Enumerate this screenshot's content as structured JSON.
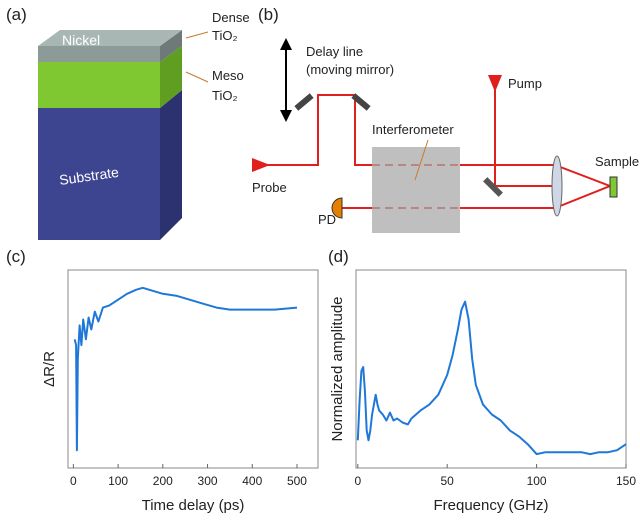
{
  "panels": {
    "a": {
      "tag": "(a)",
      "dense": "Dense",
      "dense_material": "TiO₂",
      "nickel": "Nickel",
      "meso": "Meso",
      "meso_material": "TiO₂",
      "substrate": "Substrate"
    },
    "b": {
      "tag": "(b)",
      "delay_line": "Delay line",
      "delay_note": "(moving mirror)",
      "pump": "Pump",
      "interferometer": "Interferometer",
      "probe": "Probe",
      "detector": "PD",
      "sample": "Sample"
    },
    "c": {
      "tag": "(c)"
    },
    "d": {
      "tag": "(d)"
    }
  },
  "chart_data": [
    {
      "type": "line",
      "x_label": "Time delay (ps)",
      "y_label": "ΔR/R",
      "xlim": [
        -12,
        547
      ],
      "ylim": [
        0,
        1
      ],
      "xticks": [
        0,
        100,
        200,
        300,
        400,
        500
      ],
      "color": "#1f78d8",
      "x": [
        3,
        6,
        8,
        10,
        14,
        18,
        22,
        28,
        34,
        40,
        48,
        56,
        66,
        80,
        100,
        120,
        140,
        155,
        170,
        200,
        230,
        260,
        290,
        320,
        350,
        400,
        450,
        500
      ],
      "values": [
        0.65,
        0.62,
        0.09,
        0.55,
        0.72,
        0.62,
        0.75,
        0.65,
        0.76,
        0.7,
        0.79,
        0.74,
        0.81,
        0.82,
        0.85,
        0.88,
        0.9,
        0.91,
        0.9,
        0.88,
        0.87,
        0.85,
        0.83,
        0.81,
        0.8,
        0.8,
        0.8,
        0.81
      ]
    },
    {
      "type": "line",
      "x_label": "Frequency (GHz)",
      "y_label": "Normalized amplitude",
      "xlim": [
        -1,
        150
      ],
      "ylim": [
        0,
        1
      ],
      "xticks": [
        0,
        50,
        100,
        150
      ],
      "color": "#1f78d8",
      "x": [
        0,
        1,
        2,
        3,
        4,
        5,
        6,
        7,
        8,
        10,
        11,
        12,
        14,
        16,
        18,
        20,
        22,
        25,
        28,
        30,
        35,
        40,
        45,
        50,
        53,
        56,
        58,
        60,
        62,
        64,
        66,
        70,
        75,
        80,
        85,
        90,
        95,
        100,
        105,
        110,
        115,
        120,
        125,
        130,
        135,
        140,
        145,
        150
      ],
      "values": [
        0.14,
        0.34,
        0.49,
        0.51,
        0.39,
        0.19,
        0.14,
        0.19,
        0.27,
        0.37,
        0.32,
        0.29,
        0.27,
        0.24,
        0.28,
        0.24,
        0.25,
        0.23,
        0.22,
        0.25,
        0.29,
        0.32,
        0.37,
        0.47,
        0.57,
        0.7,
        0.8,
        0.84,
        0.75,
        0.55,
        0.42,
        0.32,
        0.27,
        0.24,
        0.19,
        0.16,
        0.12,
        0.07,
        0.08,
        0.08,
        0.08,
        0.08,
        0.08,
        0.07,
        0.08,
        0.08,
        0.09,
        0.12
      ]
    }
  ]
}
